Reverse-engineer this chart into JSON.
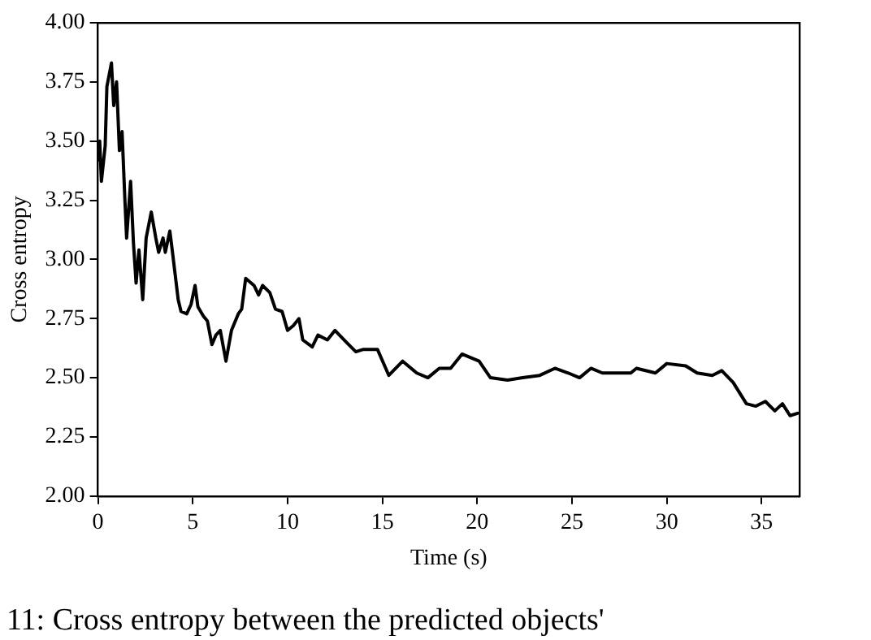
{
  "chart_data": {
    "type": "line",
    "xlabel": "Time (s)",
    "ylabel": "Cross entropy",
    "xlim": [
      0,
      37
    ],
    "ylim": [
      2,
      4
    ],
    "xticks": [
      0,
      5,
      10,
      15,
      20,
      25,
      30,
      35
    ],
    "yticks": [
      {
        "value": 2,
        "label": "2.00"
      },
      {
        "value": 2.25,
        "label": "2.25"
      },
      {
        "value": 2.5,
        "label": "2.50"
      },
      {
        "value": 2.75,
        "label": "2.75"
      },
      {
        "value": 3,
        "label": "3.00"
      },
      {
        "value": 3.25,
        "label": "3.25"
      },
      {
        "value": 3.5,
        "label": "3.50"
      },
      {
        "value": 3.75,
        "label": "3.75"
      },
      {
        "value": 4,
        "label": "4.00"
      }
    ],
    "grid": false,
    "legend": false,
    "marker": "none",
    "line_style": "solid",
    "annotations": [
      "11: Cross entropy between the predicted objects'"
    ],
    "series": [
      {
        "color": "#000000",
        "x": [
          0,
          0.09,
          0.18,
          0.38,
          0.47,
          0.71,
          0.83,
          0.98,
          1.13,
          1.27,
          1.42,
          1.51,
          1.72,
          1.87,
          2.01,
          2.16,
          2.36,
          2.54,
          2.81,
          3.05,
          3.2,
          3.43,
          3.55,
          3.79,
          3.93,
          4.23,
          4.38,
          4.68,
          4.91,
          5.12,
          5.27,
          5.56,
          5.77,
          6.01,
          6.22,
          6.45,
          6.75,
          7.04,
          7.4,
          7.58,
          7.79,
          8.23,
          8.47,
          8.68,
          9.06,
          9.36,
          9.71,
          10.0,
          10.3,
          10.6,
          10.8,
          11.3,
          11.6,
          12.1,
          12.5,
          13.1,
          13.6,
          14.0,
          14.74,
          15.34,
          16.07,
          16.81,
          17.4,
          18.0,
          18.6,
          19.2,
          20.1,
          20.7,
          21.6,
          22.4,
          23.3,
          24.1,
          24.8,
          25.4,
          26.0,
          26.6,
          27.2,
          28.1,
          28.4,
          29.4,
          30.0,
          31.0,
          31.6,
          32.4,
          32.9,
          33.5,
          34.2,
          34.7,
          35.2,
          35.7,
          36.1,
          36.5,
          36.9
        ],
        "values": [
          3.42,
          3.5,
          3.33,
          3.48,
          3.73,
          3.83,
          3.65,
          3.75,
          3.46,
          3.54,
          3.25,
          3.09,
          3.33,
          3.07,
          2.9,
          3.04,
          2.83,
          3.09,
          3.2,
          3.09,
          3.03,
          3.09,
          3.03,
          3.12,
          3.03,
          2.83,
          2.78,
          2.77,
          2.81,
          2.89,
          2.8,
          2.76,
          2.74,
          2.64,
          2.68,
          2.7,
          2.57,
          2.7,
          2.77,
          2.79,
          2.92,
          2.89,
          2.85,
          2.89,
          2.86,
          2.79,
          2.78,
          2.7,
          2.72,
          2.75,
          2.66,
          2.63,
          2.68,
          2.66,
          2.7,
          2.65,
          2.61,
          2.62,
          2.62,
          2.51,
          2.57,
          2.52,
          2.5,
          2.54,
          2.54,
          2.6,
          2.57,
          2.5,
          2.49,
          2.5,
          2.51,
          2.54,
          2.52,
          2.5,
          2.54,
          2.52,
          2.52,
          2.52,
          2.54,
          2.52,
          2.56,
          2.55,
          2.52,
          2.51,
          2.53,
          2.48,
          2.39,
          2.38,
          2.4,
          2.36,
          2.39,
          2.34,
          2.35
        ]
      }
    ]
  }
}
